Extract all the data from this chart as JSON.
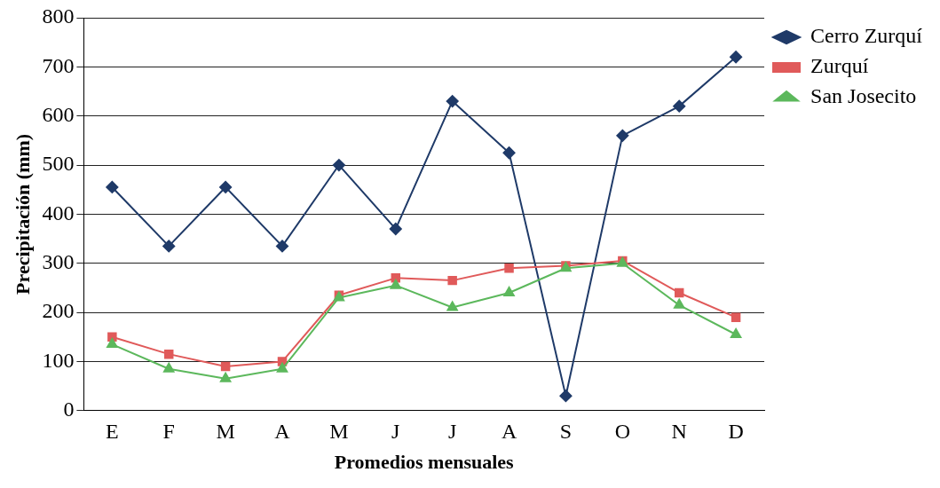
{
  "chart_data": {
    "type": "line",
    "xlabel": "Promedios mensuales",
    "ylabel": "Precipitación (mm)",
    "categories": [
      "E",
      "F",
      "M",
      "A",
      "M",
      "J",
      "J",
      "A",
      "S",
      "O",
      "N",
      "D"
    ],
    "series": [
      {
        "name": "Cerro Zurquí",
        "color": "#1f3a68",
        "marker": "diamond",
        "values": [
          455,
          335,
          455,
          335,
          500,
          370,
          630,
          525,
          30,
          560,
          620,
          720
        ]
      },
      {
        "name": "Zurquí",
        "color": "#e05a5a",
        "marker": "square",
        "values": [
          150,
          115,
          90,
          100,
          235,
          270,
          265,
          290,
          295,
          305,
          240,
          190
        ]
      },
      {
        "name": "San Josecito",
        "color": "#5cb85c",
        "marker": "triangle",
        "values": [
          135,
          85,
          65,
          85,
          230,
          255,
          210,
          240,
          290,
          300,
          215,
          155
        ]
      }
    ],
    "ylim": [
      0,
      800
    ],
    "yticks": [
      0,
      100,
      200,
      300,
      400,
      500,
      600,
      700,
      800
    ],
    "grid": "y",
    "legend": "top right",
    "line_style": "solid"
  }
}
